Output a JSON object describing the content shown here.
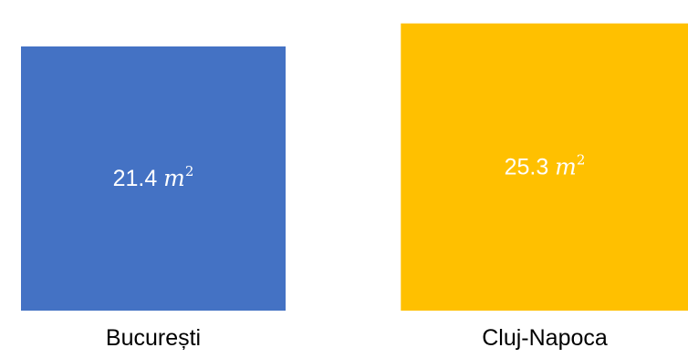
{
  "chart_data": {
    "type": "area",
    "categories": [
      "București",
      "Cluj-Napoca"
    ],
    "values": [
      21.4,
      25.3
    ],
    "unit": "m",
    "unit_exponent": "2",
    "colors": [
      "#4472C4",
      "#FFC000"
    ],
    "value_label_color": "#FFFFFF",
    "category_label_color": "#000000"
  }
}
